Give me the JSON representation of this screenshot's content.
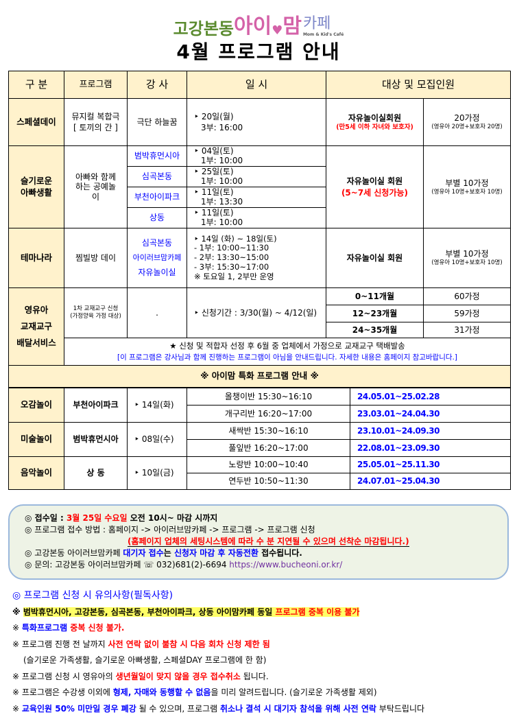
{
  "logo": {
    "part1": "고강본동",
    "part2": "아이",
    "heart": "♥",
    "part3": "맘",
    "part4": "카페",
    "sub": "Mom & Kid's Café"
  },
  "title": "4월 프로그램 안내",
  "headers": [
    "구 분",
    "프로그램",
    "강 사",
    "일 시",
    "대상 및 모집인원"
  ],
  "special": {
    "cat": "스페셜데이",
    "prog1": "뮤지컬 복합극",
    "prog2": "[ 토끼의 간 ]",
    "teacher": "극단 하늘꿈",
    "date1": "‣ 20일(월)",
    "date2": "3부:  16:00",
    "target1": "자유놀이실회원",
    "target2": "(만5세 이하 자녀와 보호자)",
    "cap1": "20가정",
    "cap2": "(영유아 20명+보호자 20명)"
  },
  "dad": {
    "cat1": "슬기로운",
    "cat2": "아빠생활",
    "prog": "아빠와 함께하는 공예놀이",
    "rows": [
      {
        "teacher": "범박휴먼시아",
        "d1": "‣ 04일(토)",
        "d2": "1부:  10:00"
      },
      {
        "teacher": "심곡본동",
        "d1": "‣ 25일(토)",
        "d2": "1부:  10:00"
      },
      {
        "teacher": "부천아이파크",
        "d1": "‣ 11일(토)",
        "d2": "1부:  13:30"
      },
      {
        "teacher": "상동",
        "d1": "‣ 11일(토)",
        "d2": "1부:  10:00"
      }
    ],
    "target1": "자유놀이실 회원",
    "target2": "(5~7세 신청가능)",
    "cap1": "부별 10가정",
    "cap2": "(영유아 10명+보호자 10명)"
  },
  "thema": {
    "cat": "테마나라",
    "prog": "찜빌방 데이",
    "t1": "심곡본동",
    "t2": "아이러브맘카페",
    "t3": "자유놀이실",
    "lines": [
      "‣ 14일 (화) ~ 18일(토)",
      "-  1부:  10:00~11:30",
      "-  2부:  13:30~15:00",
      "-  3부:  15:30~17:00",
      "※ 토요일 1, 2부만 운영"
    ],
    "target": "자유놀이실 회원",
    "cap1": "부별 10가정",
    "cap2": "(영유아 10명+보호자 10명)"
  },
  "infant": {
    "cat1": "영유아",
    "cat2": "교재교구",
    "cat3": "배달서비스",
    "prog1": "1차 교재교구 신청",
    "prog2": "(가정양육 가정 대상)",
    "teacher": ".",
    "date": "‣ 신청기간 : 3/30(월) ~ 4/12(일)",
    "rows": [
      {
        "age": "0~11개월",
        "cap": "60가정"
      },
      {
        "age": "12~23개월",
        "cap": "59가정"
      },
      {
        "age": "24~35개월",
        "cap": "31가정"
      }
    ],
    "note1": "★ 신청 및 적합자 선정 후 6월 중 업체에서 가정으로 교재교구 택배발송",
    "note2": "[이 프로그램은 강사님과 함께 진행하는 프로그램이 아님을 안내드립니다. 자세한 내용은 홈페이지 참고바랍니다.]"
  },
  "special_title": "※ 아이맘 특화 프로그램 안내 ※",
  "specials": [
    {
      "cat": "오감놀이",
      "place": "부천아이파크",
      "date": "‣ 14일(화)",
      "classes": [
        {
          "name": "올챙이반  15:30~16:10",
          "range": "24.05.01~25.02.28"
        },
        {
          "name": "개구리반  16:20~17:00",
          "range": "23.03.01~24.04.30"
        }
      ]
    },
    {
      "cat": "미술놀이",
      "place": "범박휴먼시아",
      "date": "‣ 08일(수)",
      "classes": [
        {
          "name": "새싹반  15:30~16:10",
          "range": "23.10.01~24.09.30"
        },
        {
          "name": "풀잎반  16:20~17:00",
          "range": "22.08.01~23.09.30"
        }
      ]
    },
    {
      "cat": "음악놀이",
      "place": "상 동",
      "date": "‣ 10일(금)",
      "classes": [
        {
          "name": "노랑반  10:00~10:40",
          "range": "25.05.01~25.11.30"
        },
        {
          "name": "연두반  10:50~11:30",
          "range": "24.07.01~25.04.30"
        }
      ]
    }
  ],
  "box": {
    "l1a": "◎ 접수일 : ",
    "l1b": "3월 25일 수요일",
    "l1c": " 오전 10시~ 마감 시까지",
    "l2": "◎ 프로그램 접수 방법 : 홈페이지 -> 아이러브맘카페 -> 프로그램 -> 프로그램 신청",
    "l3": "(홈페이지 업체의 세팅시스템에 따라 수 분 지연될 수 있으며 선착순 마감됩니다.)",
    "l4a": "◎ 고강본동 아이러브맘카페 ",
    "l4b": "대기자 접수",
    "l4c": "는 ",
    "l4d": "신청자 마감 후 자동전환",
    "l4e": " 접수됩니다.",
    "l5a": "◎ 문의: 고강본동 아이러브맘카페 ☏ 032)681(2)-6694 ",
    "l5b": "https://www.bucheoni.or.kr/"
  },
  "notes": {
    "title": "◎ 프로그램 신청 시 유의사항(필독사항)",
    "n1a": "※ ",
    "n1b": "범박휴먼시아, 고강본동, 심곡본동, 부천아이파크, 상동 아이맘카페 동일 ",
    "n1c": "프로그램 중복 이용 불가",
    "n2a": "※ ",
    "n2b": "특화프로그램 ",
    "n2c": "중복 신청 불가.",
    "n3a": "※ 프로그램 진행 전 날까지 ",
    "n3b": "사전 연락 없이 불참 시 다음 회차 신청 제한 됨",
    "n4": "(슬기로운 가족생활, 슬기로운 아빠생활, 스페셜DAY 프로그램에 한 함)",
    "n5a": "※ 프로그램 신청 시 영유아의 ",
    "n5b": "생년월일이 맞지 않을 경우 접수취소",
    "n5c": " 됩니다.",
    "n6a": "※ 프로그램은 수강생 이외에 ",
    "n6b": "형제, 자매와 동행할 수 없음",
    "n6c": "을 미리 알려드립니다. (슬기로운 가족생활 제외)",
    "n7a": "※ ",
    "n7b": "교육인원 50% 미만일 경우 폐강",
    "n7c": " 될 수 있으며, 프로그램 ",
    "n7d": "취소나 결석 시 대기자 참석을 위해 사전 연락",
    "n7e": " 부탁드립니다"
  }
}
